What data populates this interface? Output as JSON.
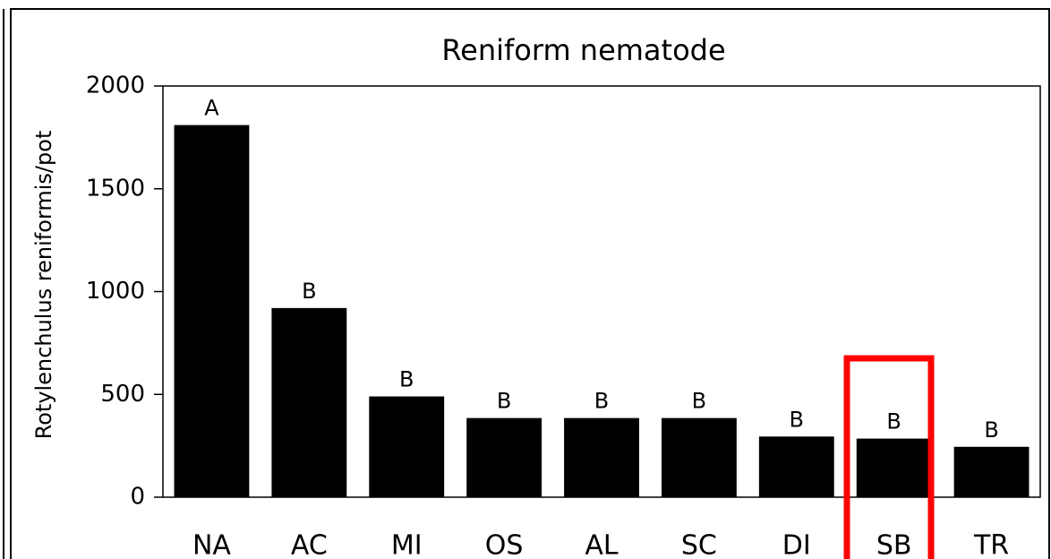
{
  "chart_data": {
    "type": "bar",
    "title": "Reniform nematode",
    "y_label": "Rotylenchulus reniformis/pot",
    "categories": [
      "NA",
      "AC",
      "MI",
      "OS",
      "AL",
      "SC",
      "DI",
      "SB",
      "TR"
    ],
    "values": [
      1810,
      920,
      490,
      385,
      385,
      385,
      295,
      285,
      245
    ],
    "letters": [
      "A",
      "B",
      "B",
      "B",
      "B",
      "B",
      "B",
      "B",
      "B"
    ],
    "color": "#000000",
    "ylim": [
      0,
      2000
    ],
    "yticks": [
      0,
      500,
      1000,
      1500,
      2000
    ],
    "grid": false
  }
}
